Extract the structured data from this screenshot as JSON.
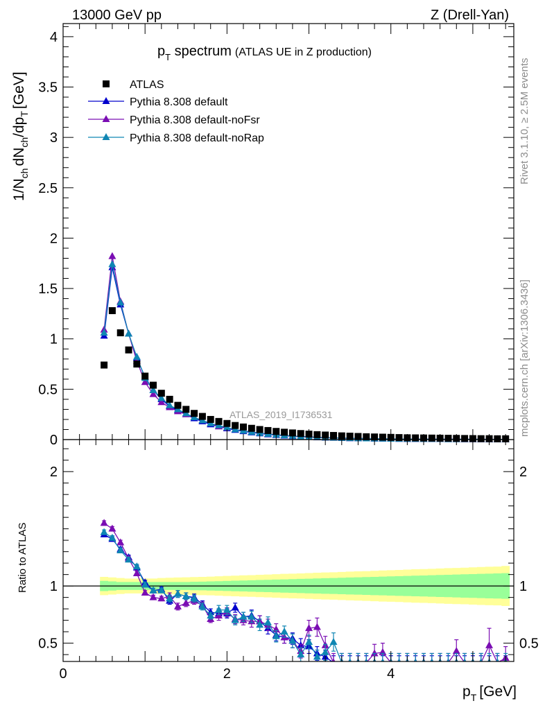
{
  "header": {
    "left": "13000 GeV pp",
    "right": "Z (Drell-Yan)"
  },
  "side_labels": {
    "rivet": "Rivet 3.1.10, ≥ 2.5M events",
    "mcplots": "mcplots.cern.ch [arXiv:1306.3436]"
  },
  "watermark": "ATLAS_2019_I1736531",
  "colors": {
    "data": "#000000",
    "default": "#0000cc",
    "noFsr": "#7a0db3",
    "noRap": "#0f86b3",
    "band_inner": "#99ff99",
    "band_outer": "#ffff99"
  },
  "chart_data": [
    {
      "type": "scatter",
      "title_main": "p",
      "title_sub": "T",
      "title_rest": " spectrum",
      "title_note": "(ATLAS UE in Z production)",
      "ylabel": "1/N_ch dN_ch/dp_T [GeV]",
      "ylim": [
        0,
        4.13
      ],
      "xlim": [
        0,
        5.5
      ],
      "yticks": [
        "0",
        "0.5",
        "1",
        "1.5",
        "2",
        "2.5",
        "3",
        "3.5",
        "4"
      ],
      "legend_position": "top-left",
      "legend": [
        "ATLAS",
        "Pythia 8.308 default",
        "Pythia 8.308 default-noFsr",
        "Pythia 8.308 default-noRap"
      ],
      "x": [
        0.5,
        0.6,
        0.7,
        0.8,
        0.9,
        1.0,
        1.1,
        1.2,
        1.3,
        1.4,
        1.5,
        1.6,
        1.7,
        1.8,
        1.9,
        2.0,
        2.1,
        2.2,
        2.3,
        2.4,
        2.5,
        2.6,
        2.7,
        2.8,
        2.9,
        3.0,
        3.1,
        3.2,
        3.3,
        3.4,
        3.5,
        3.6,
        3.7,
        3.8,
        3.9,
        4.0,
        4.1,
        4.2,
        4.3,
        4.4,
        4.5,
        4.6,
        4.7,
        4.8,
        4.9,
        5.0,
        5.1,
        5.2,
        5.3,
        5.4
      ],
      "series": [
        {
          "name": "ATLAS",
          "values": [
            0.74,
            1.28,
            1.06,
            0.89,
            0.75,
            0.63,
            0.54,
            0.46,
            0.4,
            0.34,
            0.3,
            0.26,
            0.23,
            0.2,
            0.18,
            0.16,
            0.14,
            0.125,
            0.112,
            0.1,
            0.09,
            0.081,
            0.073,
            0.066,
            0.06,
            0.054,
            0.049,
            0.045,
            0.041,
            0.037,
            0.034,
            0.031,
            0.028,
            0.026,
            0.024,
            0.022,
            0.02,
            0.018,
            0.017,
            0.016,
            0.015,
            0.014,
            0.013,
            0.012,
            0.011,
            0.01,
            0.009,
            0.009,
            0.008,
            0.008
          ]
        },
        {
          "name": "Pythia 8.308 default",
          "values": [
            1.03,
            1.71,
            1.34,
            1.05,
            0.81,
            0.62,
            0.49,
            0.4,
            0.33,
            0.29,
            0.25,
            0.21,
            0.18,
            0.15,
            0.13,
            0.11,
            0.095,
            0.082,
            0.07,
            0.06,
            0.051,
            0.044,
            0.038,
            0.033,
            0.028,
            0.024,
            0.021,
            0.018,
            0.016,
            0.014,
            0.012,
            0.011,
            0.01,
            0.009,
            0.008,
            0.007,
            0.006,
            0.005,
            0.005,
            0.004,
            0.004,
            0.004,
            0.003,
            0.003,
            0.003,
            0.003,
            0.003,
            0.002,
            0.002,
            0.002
          ]
        },
        {
          "name": "Pythia 8.308 default-noFsr",
          "values": [
            1.09,
            1.82,
            1.37,
            1.05,
            0.78,
            0.57,
            0.45,
            0.37,
            0.32,
            0.28,
            0.25,
            0.22,
            0.19,
            0.16,
            0.13,
            0.115,
            0.1,
            0.087,
            0.076,
            0.065,
            0.056,
            0.048,
            0.042,
            0.036,
            0.031,
            0.027,
            0.023,
            0.02,
            0.018,
            0.015,
            0.013,
            0.012,
            0.01,
            0.009,
            0.008,
            0.007,
            0.006,
            0.005,
            0.005,
            0.004,
            0.004,
            0.004,
            0.004,
            0.004,
            0.003,
            0.003,
            0.003,
            0.003,
            0.003,
            0.002
          ]
        },
        {
          "name": "Pythia 8.308 default-noRap",
          "values": [
            1.06,
            1.74,
            1.36,
            1.05,
            0.82,
            0.61,
            0.49,
            0.41,
            0.34,
            0.3,
            0.26,
            0.22,
            0.19,
            0.16,
            0.14,
            0.12,
            0.1,
            0.087,
            0.074,
            0.064,
            0.055,
            0.047,
            0.041,
            0.036,
            0.03,
            0.026,
            0.022,
            0.019,
            0.017,
            0.015,
            0.013,
            0.011,
            0.01,
            0.009,
            0.008,
            0.007,
            0.006,
            0.005,
            0.005,
            0.004,
            0.004,
            0.004,
            0.003,
            0.003,
            0.003,
            0.003,
            0.003,
            0.002,
            0.002,
            0.002
          ]
        }
      ]
    },
    {
      "type": "line",
      "ylabel": "Ratio to ATLAS",
      "xlabel": "p_T [GeV]",
      "ylim": [
        0.34,
        2.28
      ],
      "xlim": [
        0,
        5.5
      ],
      "xticks": [
        "0",
        "2",
        "4"
      ],
      "yticks": [
        "0.5",
        "1",
        "2"
      ],
      "x": [
        0.5,
        0.6,
        0.7,
        0.8,
        0.9,
        1.0,
        1.1,
        1.2,
        1.3,
        1.4,
        1.5,
        1.6,
        1.7,
        1.8,
        1.9,
        2.0,
        2.1,
        2.2,
        2.3,
        2.4,
        2.5,
        2.6,
        2.7,
        2.8,
        2.9,
        3.0,
        3.1,
        3.2,
        3.3,
        3.4,
        3.5,
        3.6,
        3.7,
        3.8,
        3.9,
        4.0,
        4.1,
        4.2,
        4.3,
        4.4,
        4.5,
        4.6,
        4.7,
        4.8,
        4.9,
        5.0,
        5.1,
        5.2,
        5.3,
        5.4
      ],
      "band_inner": [
        0.045,
        0.04,
        0.035,
        0.035,
        0.035,
        0.035,
        0.035,
        0.035,
        0.035,
        0.035,
        0.035,
        0.037,
        0.038,
        0.04,
        0.042,
        0.044,
        0.046,
        0.048,
        0.05,
        0.052,
        0.054,
        0.056,
        0.058,
        0.06,
        0.062,
        0.064,
        0.066,
        0.068,
        0.07,
        0.072,
        0.074,
        0.076,
        0.078,
        0.08,
        0.082,
        0.084,
        0.086,
        0.088,
        0.09,
        0.092,
        0.094,
        0.096,
        0.098,
        0.1,
        0.102,
        0.104,
        0.106,
        0.108,
        0.11,
        0.112
      ],
      "band_outer": [
        0.08,
        0.075,
        0.07,
        0.065,
        0.065,
        0.065,
        0.065,
        0.07,
        0.072,
        0.074,
        0.076,
        0.078,
        0.08,
        0.082,
        0.085,
        0.088,
        0.09,
        0.093,
        0.095,
        0.098,
        0.1,
        0.103,
        0.106,
        0.108,
        0.11,
        0.113,
        0.116,
        0.118,
        0.12,
        0.123,
        0.126,
        0.128,
        0.13,
        0.133,
        0.136,
        0.138,
        0.14,
        0.143,
        0.146,
        0.148,
        0.15,
        0.153,
        0.156,
        0.158,
        0.16,
        0.163,
        0.166,
        0.168,
        0.17,
        0.175
      ],
      "series": [
        {
          "name": "Pythia 8.308 default",
          "values": [
            1.45,
            1.41,
            1.32,
            1.25,
            1.16,
            1.03,
            0.96,
            0.97,
            0.87,
            0.93,
            0.91,
            0.9,
            0.84,
            0.77,
            0.76,
            0.76,
            0.81,
            0.73,
            0.74,
            0.69,
            0.63,
            0.57,
            0.55,
            0.54,
            0.48,
            0.47,
            0.41,
            0.38,
            0.33,
            0.33,
            0.33,
            0.33,
            0.33,
            0.33,
            0.33,
            0.33,
            0.33,
            0.33,
            0.33,
            0.33,
            0.33,
            0.33,
            0.33,
            0.33,
            0.33,
            0.33,
            0.33,
            0.33,
            0.33,
            0.33
          ],
          "err": [
            0.02,
            0.02,
            0.02,
            0.02,
            0.02,
            0.02,
            0.02,
            0.02,
            0.03,
            0.03,
            0.03,
            0.03,
            0.03,
            0.03,
            0.04,
            0.04,
            0.04,
            0.04,
            0.05,
            0.05,
            0.05,
            0.05,
            0.05,
            0.05,
            0.06,
            0.06,
            0.06,
            0.06,
            0.06,
            0.06,
            0.06,
            0.06,
            0.06,
            0.06,
            0.06,
            0.06,
            0.06,
            0.06,
            0.06,
            0.06,
            0.06,
            0.06,
            0.06,
            0.06,
            0.06,
            0.06,
            0.06,
            0.06,
            0.06,
            0.06
          ]
        },
        {
          "name": "Pythia 8.308 default-noFsr",
          "values": [
            1.55,
            1.5,
            1.38,
            1.24,
            1.11,
            0.94,
            0.9,
            0.89,
            0.91,
            0.82,
            0.85,
            0.87,
            0.83,
            0.71,
            0.74,
            0.77,
            0.71,
            0.7,
            0.69,
            0.69,
            0.66,
            0.62,
            0.55,
            0.52,
            0.43,
            0.63,
            0.64,
            0.48,
            0.33,
            0.33,
            0.33,
            0.33,
            0.33,
            0.41,
            0.42,
            0.33,
            0.33,
            0.33,
            0.33,
            0.33,
            0.33,
            0.33,
            0.33,
            0.43,
            0.33,
            0.33,
            0.33,
            0.48,
            0.33,
            0.37
          ],
          "err": [
            0.02,
            0.02,
            0.02,
            0.02,
            0.02,
            0.02,
            0.02,
            0.02,
            0.03,
            0.03,
            0.03,
            0.03,
            0.03,
            0.03,
            0.04,
            0.04,
            0.04,
            0.04,
            0.05,
            0.05,
            0.05,
            0.05,
            0.05,
            0.06,
            0.06,
            0.07,
            0.08,
            0.08,
            0.08,
            0.08,
            0.08,
            0.08,
            0.08,
            0.08,
            0.08,
            0.08,
            0.08,
            0.08,
            0.08,
            0.08,
            0.08,
            0.08,
            0.08,
            0.1,
            0.08,
            0.08,
            0.08,
            0.15,
            0.08,
            0.1
          ]
        },
        {
          "name": "Pythia 8.308 default-noRap",
          "values": [
            1.47,
            1.42,
            1.31,
            1.23,
            1.17,
            1.01,
            0.96,
            0.96,
            0.89,
            0.93,
            0.91,
            0.89,
            0.82,
            0.74,
            0.79,
            0.79,
            0.7,
            0.73,
            0.73,
            0.66,
            0.68,
            0.56,
            0.6,
            0.52,
            0.4,
            0.51,
            0.38,
            0.42,
            0.51,
            0.33,
            0.33,
            0.33,
            0.33,
            0.33,
            0.33,
            0.33,
            0.33,
            0.33,
            0.33,
            0.33,
            0.33,
            0.33,
            0.33,
            0.33,
            0.33,
            0.33,
            0.33,
            0.33,
            0.33,
            0.33
          ],
          "err": [
            0.02,
            0.02,
            0.02,
            0.02,
            0.02,
            0.02,
            0.02,
            0.02,
            0.03,
            0.03,
            0.03,
            0.03,
            0.03,
            0.03,
            0.04,
            0.04,
            0.04,
            0.04,
            0.05,
            0.05,
            0.05,
            0.05,
            0.05,
            0.06,
            0.06,
            0.06,
            0.06,
            0.07,
            0.08,
            0.08,
            0.08,
            0.08,
            0.08,
            0.08,
            0.08,
            0.08,
            0.08,
            0.08,
            0.08,
            0.08,
            0.08,
            0.08,
            0.08,
            0.08,
            0.08,
            0.08,
            0.08,
            0.08,
            0.08,
            0.08
          ]
        }
      ]
    }
  ]
}
